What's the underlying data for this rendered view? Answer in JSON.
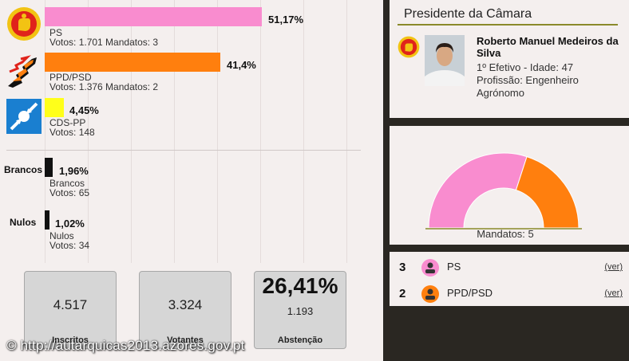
{
  "results": {
    "parties": [
      {
        "name": "PS",
        "pct_label": "51,17%",
        "votes": "Votos: 1.701 Mandatos: 3",
        "color": "#f98ccf",
        "logo": "ps-fist-rose-logo"
      },
      {
        "name": "PPD/PSD",
        "pct_label": "41,4%",
        "votes": "Votos: 1.376 Mandatos: 2",
        "color": "#ff7f0e",
        "logo": "psd-arrows-logo"
      },
      {
        "name": "CDS-PP",
        "pct_label": "4,45%",
        "votes": "Votos: 148",
        "color": "#ffff1a",
        "logo": "cds-pp-logo"
      }
    ],
    "other": [
      {
        "side_label": "Brancos",
        "pct_label": "1,96%",
        "name": "Brancos",
        "votes": "Votos: 65",
        "color": "#111111"
      },
      {
        "side_label": "Nulos",
        "pct_label": "1,02%",
        "name": "Nulos",
        "votes": "Votos: 34",
        "color": "#111111"
      }
    ]
  },
  "stats": {
    "inscritos": {
      "value": "4.517",
      "label": "Inscritos"
    },
    "votantes": {
      "value": "3.324",
      "label": "Votantes"
    },
    "abstencao": {
      "pct": "26,41%",
      "value": "1.193",
      "label": "Abstenção"
    }
  },
  "watermark": "© http://autarquicas2013.azores.gov.pt",
  "president": {
    "title": "Presidente da Câmara",
    "name": "Roberto Manuel Medeiros da Silva",
    "line1": "1º Efetivo - Idade: 47",
    "line2": "Profissão: Engenheiro Agrónomo",
    "party_logo": "ps-fist-rose-logo"
  },
  "seats_chart": {
    "label": "Mandatos: 5",
    "total": 5,
    "slices": [
      {
        "party": "PS",
        "seats": 3,
        "color": "#f98ccf"
      },
      {
        "party": "PPD/PSD",
        "seats": 2,
        "color": "#ff7f0e"
      }
    ]
  },
  "seats_list": [
    {
      "count": "3",
      "party": "PS",
      "link": "(ver)",
      "icon_color": "#f98ccf"
    },
    {
      "count": "2",
      "party": "PPD/PSD",
      "link": "(ver)",
      "icon_color": "#ff7f0e"
    }
  ],
  "colors": {
    "panel_bg": "#f4efee",
    "page_bg": "#2a2722",
    "accent_line": "#8a8a2a"
  }
}
